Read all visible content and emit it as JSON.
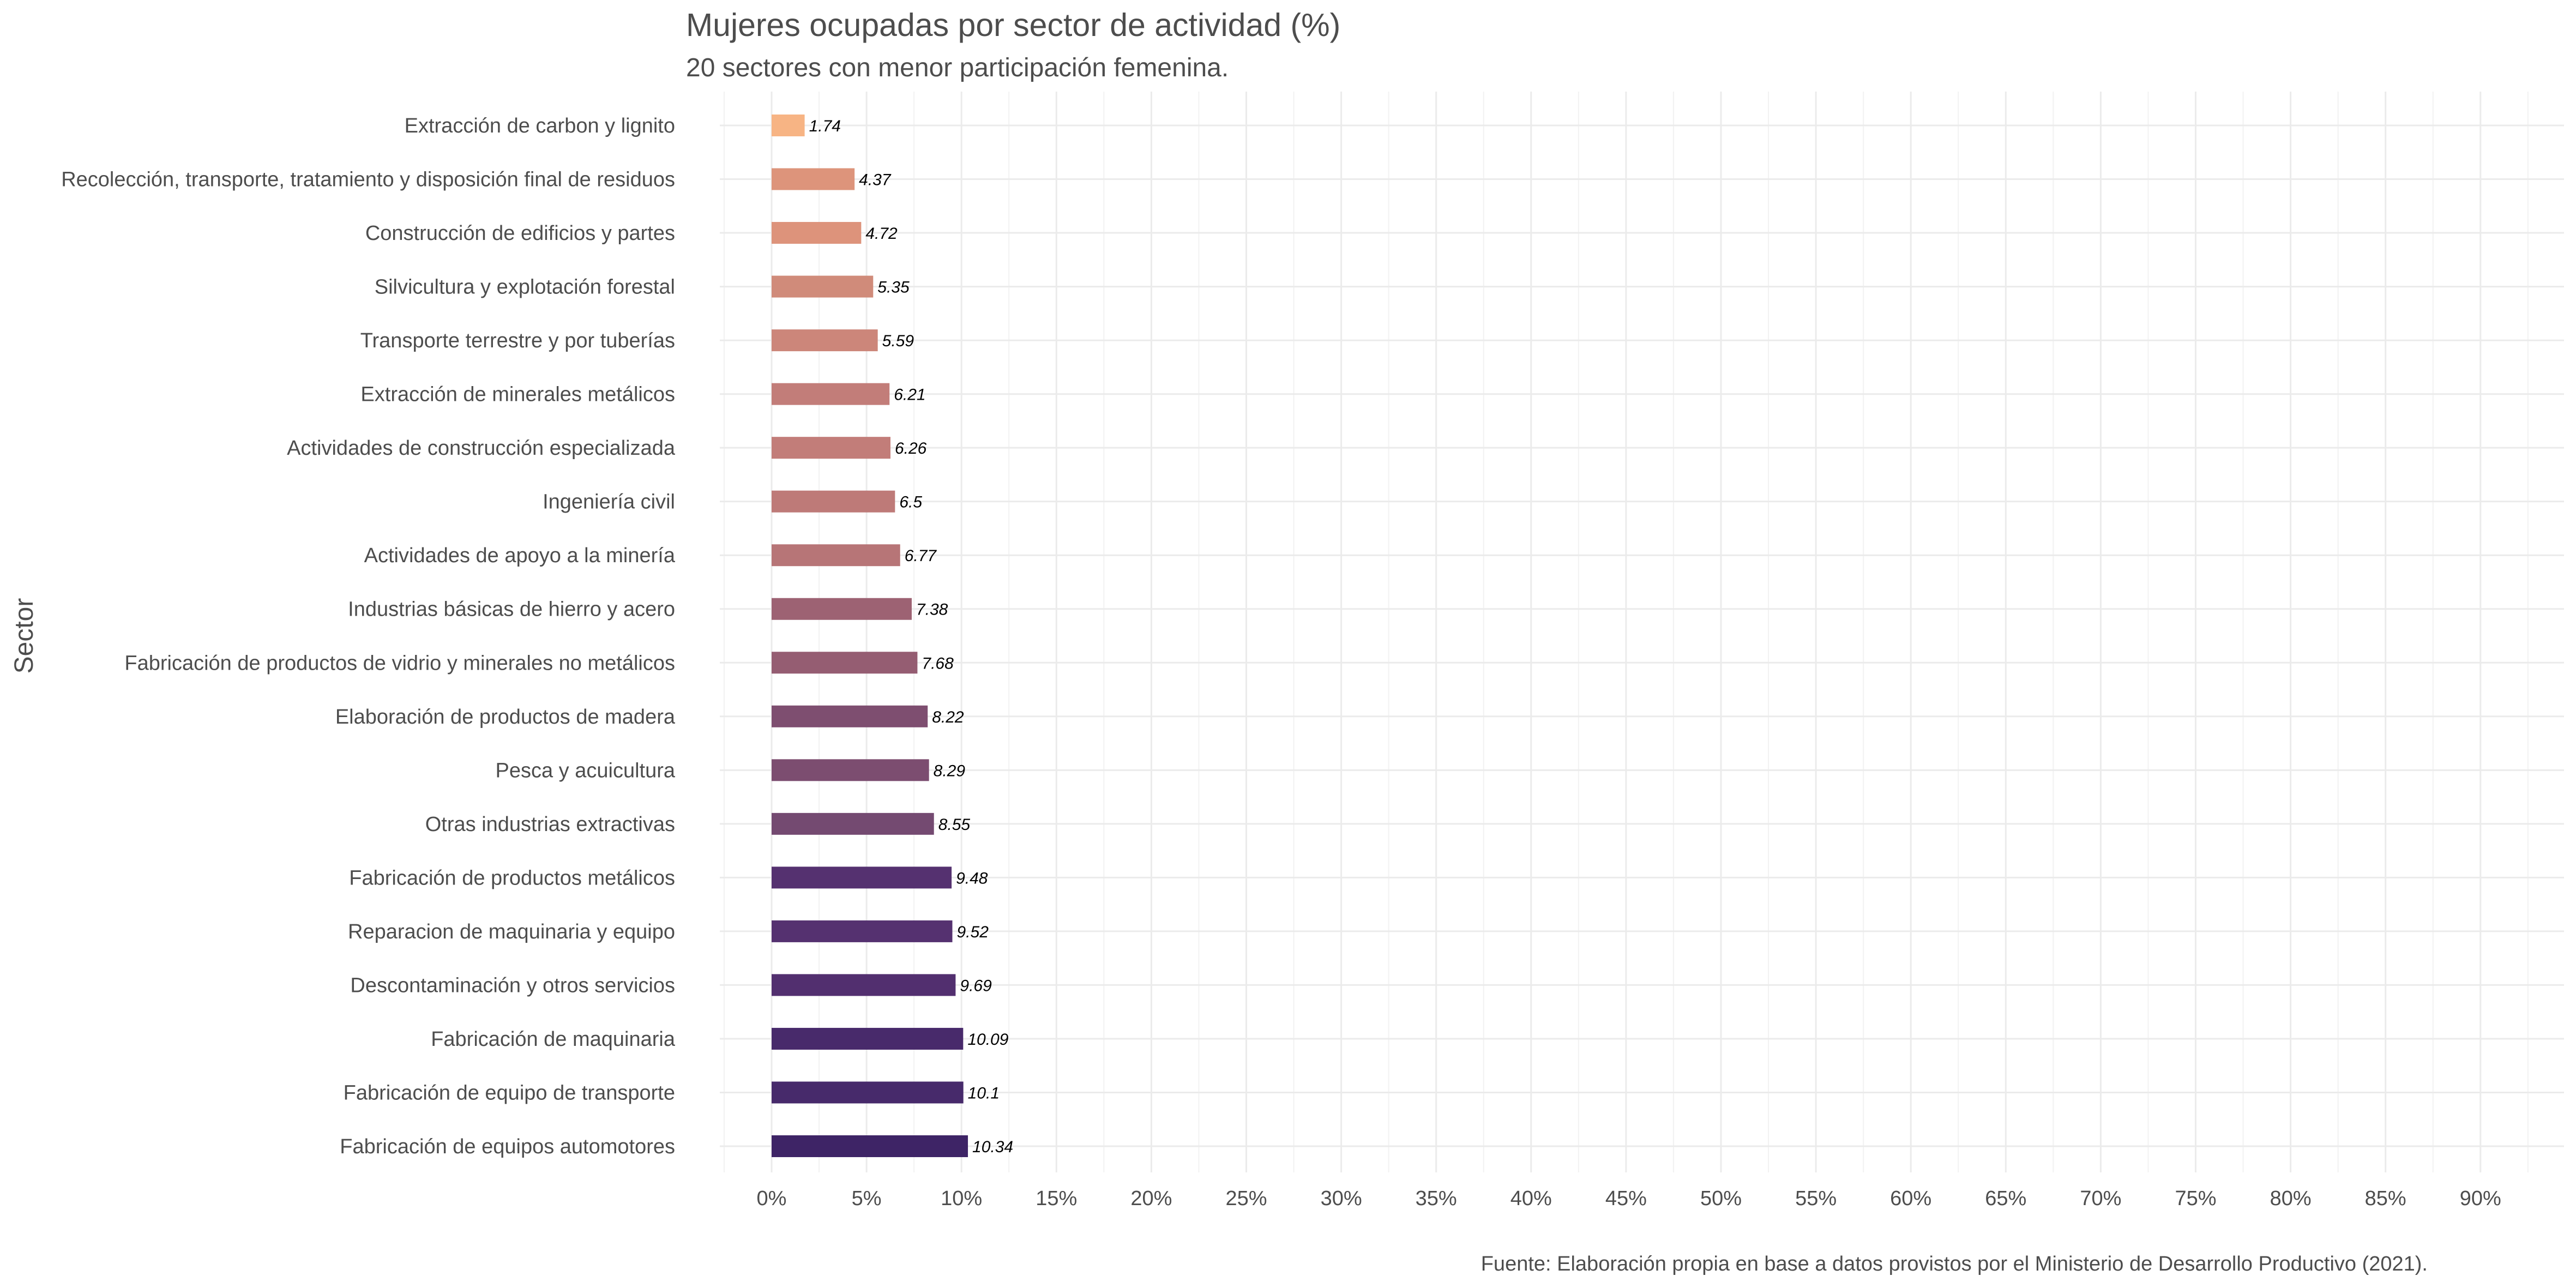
{
  "chart_data": {
    "type": "bar",
    "orientation": "horizontal",
    "title": "Mujeres ocupadas por sector de actividad (%)",
    "subtitle": "20 sectores con menor participación femenina.",
    "ylabel": "Sector",
    "xlabel": "",
    "caption": "Fuente: Elaboración propia en base a datos provistos por el Ministerio de Desarrollo Productivo (2021).",
    "categories": [
      "Extracción de carbon y lignito",
      "Recolección, transporte, tratamiento y disposición final de residuos",
      "Construcción de edificios y partes",
      "Silvicultura y explotación forestal",
      "Transporte terrestre y por tuberías",
      "Extracción de minerales metálicos",
      "Actividades de construcción especializada",
      "Ingeniería civil",
      "Actividades de apoyo a la minería",
      "Industrias básicas de hierro y acero",
      "Fabricación de productos de vidrio y minerales no metálicos",
      "Elaboración de productos de madera",
      "Pesca y acuicultura",
      "Otras industrias extractivas",
      "Fabricación de productos metálicos",
      "Reparacion de maquinaria y equipo",
      "Descontaminación y otros servicios",
      "Fabricación de maquinaria",
      "Fabricación de equipo de transporte",
      "Fabricación de equipos automotores"
    ],
    "values": [
      1.74,
      4.37,
      4.72,
      5.35,
      5.59,
      6.21,
      6.26,
      6.5,
      6.77,
      7.38,
      7.68,
      8.22,
      8.29,
      8.55,
      9.48,
      9.52,
      9.69,
      10.09,
      10.1,
      10.34
    ],
    "value_labels": [
      "1.74",
      "4.37",
      "4.72",
      "5.35",
      "5.59",
      "6.21",
      "6.26",
      "6.5",
      "6.77",
      "7.38",
      "7.68",
      "8.22",
      "8.29",
      "8.55",
      "9.48",
      "9.52",
      "9.69",
      "10.09",
      "10.1",
      "10.34"
    ],
    "colors": [
      "#f7b484",
      "#dd947b",
      "#dd937b",
      "#d08b7a",
      "#cc867a",
      "#c27d79",
      "#c27d79",
      "#be7a78",
      "#b77577",
      "#9d6273",
      "#955d72",
      "#7e4e70",
      "#7c4d70",
      "#744a71",
      "#553170",
      "#553170",
      "#522f6f",
      "#482a6b",
      "#472a6b",
      "#3e2466"
    ],
    "xticks": [
      0,
      5,
      10,
      15,
      20,
      25,
      30,
      35,
      40,
      45,
      50,
      55,
      60,
      65,
      70,
      75,
      80,
      85,
      90
    ],
    "xtick_labels": [
      "0%",
      "5%",
      "10%",
      "15%",
      "20%",
      "25%",
      "30%",
      "35%",
      "40%",
      "45%",
      "50%",
      "55%",
      "60%",
      "65%",
      "70%",
      "75%",
      "80%",
      "85%",
      "90%"
    ],
    "xlim": [
      -2.7,
      94.3
    ],
    "grid": true
  }
}
